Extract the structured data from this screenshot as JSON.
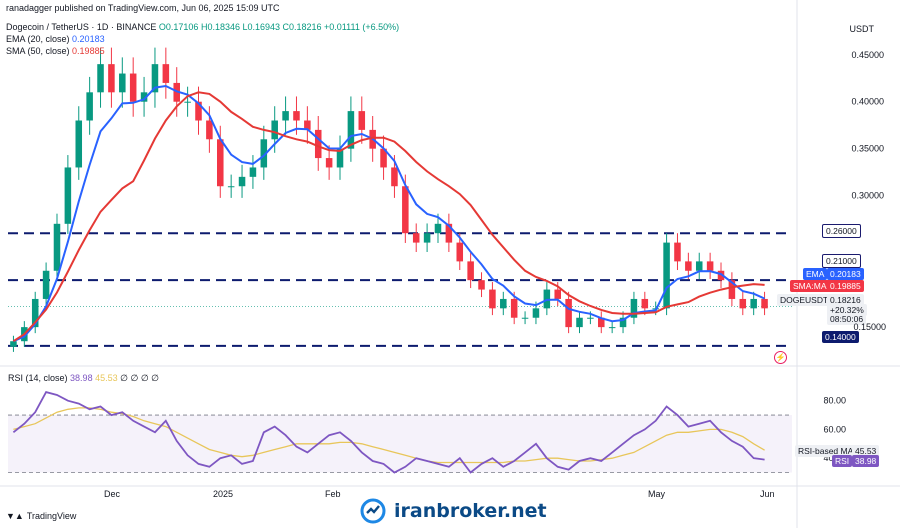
{
  "header": {
    "published": "ranadagger published on TradingView.com, Jun 06, 2025 15:09 UTC",
    "symbol": "Dogecoin / TetherUS · 1D · BINANCE",
    "ohlc": "O0.17106 H0.18346 L0.16943 C0.18216 +0.01111 (+6.50%)",
    "ema_label": "EMA (20, close)",
    "ema_value": "0.20183",
    "sma_label": "SMA (50, close)",
    "sma_value": "0.19885",
    "currency": "USDT"
  },
  "rsi_header": {
    "label": "RSI (14, close)",
    "v1": "38.98",
    "v2": "45.53",
    "rest": "∅ ∅ ∅ ∅"
  },
  "footer": {
    "brand": "TradingView",
    "watermark": "iranbroker.net"
  },
  "tags": {
    "l026": "0.26000",
    "l021": "0.21000",
    "ema": "EMA",
    "ema_v": "0.20183",
    "sma": "SMA:MA",
    "sma_v": "0.19885",
    "sym": "DOGEUSDT",
    "price": "0.18216",
    "change": "+20.32%",
    "timer": "08:50:06",
    "l015": "0.15000",
    "l014": "0.14000",
    "rsi_ma_label": "RSI-based MA",
    "rsi_ma_v": "45.53",
    "rsi_label": "RSI",
    "rsi_v": "38.98"
  },
  "chart_data": [
    {
      "type": "candlestick",
      "title": "Dogecoin / TetherUS · 1D · BINANCE",
      "currency": "USDT",
      "y_ticks": [
        0.45,
        0.4,
        0.35,
        0.3
      ],
      "y_tick_labels": [
        "0.45000",
        "0.40000",
        "0.35000",
        "0.30000"
      ],
      "ylim": [
        0.125,
        0.487
      ],
      "x_ticks": [
        "Dec",
        "2025",
        "Feb",
        "May",
        "Jun"
      ],
      "horizontal_levels": [
        0.26,
        0.21,
        0.14
      ],
      "last_price": 0.18216,
      "overlays": [
        {
          "name": "EMA (20, close)",
          "color": "#2962ff",
          "last": 0.20183
        },
        {
          "name": "SMA (50, close)",
          "color": "#e53935",
          "last": 0.19885
        }
      ],
      "series_close": [
        0.145,
        0.16,
        0.19,
        0.22,
        0.27,
        0.33,
        0.38,
        0.41,
        0.44,
        0.41,
        0.43,
        0.4,
        0.41,
        0.44,
        0.42,
        0.4,
        0.4,
        0.38,
        0.36,
        0.31,
        0.31,
        0.32,
        0.33,
        0.36,
        0.38,
        0.39,
        0.38,
        0.37,
        0.34,
        0.33,
        0.35,
        0.39,
        0.37,
        0.35,
        0.33,
        0.31,
        0.26,
        0.25,
        0.26,
        0.27,
        0.25,
        0.23,
        0.21,
        0.2,
        0.18,
        0.19,
        0.17,
        0.17,
        0.18,
        0.2,
        0.19,
        0.16,
        0.17,
        0.17,
        0.16,
        0.16,
        0.17,
        0.19,
        0.18,
        0.18,
        0.25,
        0.23,
        0.22,
        0.23,
        0.22,
        0.21,
        0.19,
        0.18,
        0.19,
        0.18
      ]
    },
    {
      "type": "line",
      "title": "RSI (14, close)",
      "y_ticks": [
        80,
        60,
        40
      ],
      "y_tick_labels": [
        "80.00",
        "60.00",
        "40.00"
      ],
      "ylim": [
        22,
        100
      ],
      "overbought": 70,
      "oversold": 30,
      "series": [
        {
          "name": "RSI",
          "color": "#7e57c2",
          "last": 38.98
        },
        {
          "name": "RSI-based MA",
          "color": "#e8c65a",
          "last": 45.53
        }
      ],
      "rsi": [
        58,
        64,
        72,
        86,
        84,
        80,
        78,
        74,
        76,
        70,
        72,
        66,
        62,
        58,
        66,
        52,
        42,
        36,
        34,
        40,
        42,
        36,
        38,
        58,
        62,
        56,
        48,
        44,
        50,
        56,
        58,
        52,
        44,
        38,
        36,
        30,
        34,
        40,
        38,
        36,
        34,
        40,
        30,
        36,
        40,
        34,
        38,
        44,
        50,
        40,
        34,
        32,
        38,
        40,
        38,
        44,
        50,
        56,
        60,
        66,
        76,
        70,
        62,
        64,
        66,
        58,
        52,
        48,
        40,
        38.98
      ],
      "rsi_ma": [
        60,
        62,
        64,
        68,
        72,
        74,
        75,
        75,
        74,
        72,
        71,
        69,
        66,
        64,
        62,
        58,
        54,
        50,
        46,
        44,
        42,
        41,
        42,
        44,
        46,
        48,
        50,
        50,
        50,
        50,
        51,
        51,
        50,
        48,
        46,
        44,
        42,
        40,
        38,
        37,
        37,
        37,
        37,
        37,
        37,
        37,
        38,
        38,
        39,
        40,
        40,
        39,
        38,
        38,
        39,
        40,
        42,
        44,
        48,
        52,
        56,
        58,
        58,
        59,
        60,
        60,
        58,
        55,
        50,
        45.53
      ]
    }
  ]
}
